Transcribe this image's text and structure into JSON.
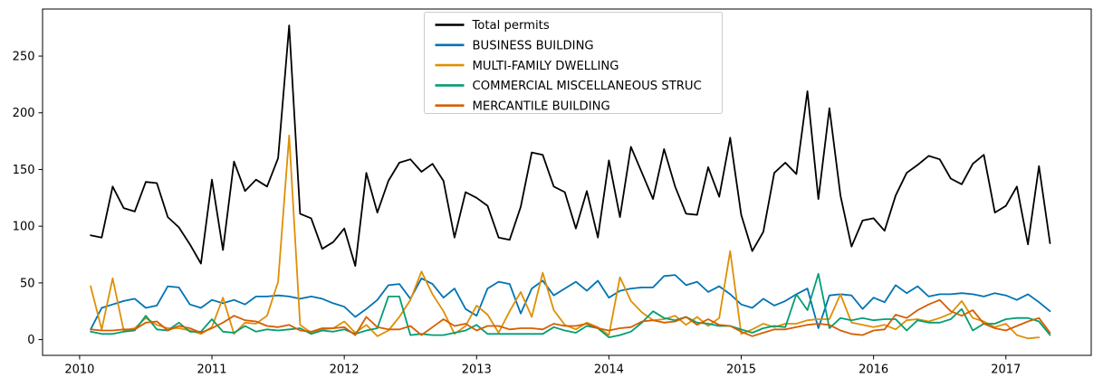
{
  "figure": {
    "background": "#ffffff",
    "border_color": "#000000"
  },
  "legend": {
    "border_color": "#cccccc",
    "items": [
      {
        "label": "Total permits",
        "color": "#000000"
      },
      {
        "label": "BUSINESS BUILDING",
        "color": "#0173b2"
      },
      {
        "label": "MULTI-FAMILY DWELLING",
        "color": "#de8f05"
      },
      {
        "label": "COMMERCIAL MISCELLANEOUS STRUC",
        "color": "#029e73"
      },
      {
        "label": "MERCANTILE BUILDING",
        "color": "#d55e00"
      }
    ]
  },
  "chart_data": {
    "type": "line",
    "title": "",
    "xlabel": "",
    "ylabel": "",
    "grid": false,
    "legend_position": "upper center",
    "x_start": "2010-01",
    "x_freq": "monthly",
    "n_points": 88,
    "xlim": [
      2009.72,
      2017.645
    ],
    "ylim": [
      -13.9,
      291.5
    ],
    "x_ticks": [
      2010,
      2011,
      2012,
      2013,
      2014,
      2015,
      2016,
      2017
    ],
    "y_ticks": [
      0,
      50,
      100,
      150,
      200,
      250
    ],
    "series": [
      {
        "name": "Total permits",
        "color": "#000000",
        "values": [
          92,
          90,
          135,
          116,
          113,
          139,
          138,
          108,
          99,
          84,
          67,
          141,
          79,
          157,
          131,
          141,
          135,
          160,
          277,
          111,
          107,
          80,
          86,
          98,
          65,
          147,
          112,
          140,
          156,
          159,
          148,
          155,
          140,
          90,
          130,
          125,
          118,
          90,
          88,
          117,
          165,
          163,
          135,
          130,
          98,
          131,
          90,
          158,
          108,
          170,
          147,
          124,
          168,
          135,
          111,
          110,
          152,
          126,
          178,
          110,
          78,
          95,
          147,
          156,
          146,
          219,
          124,
          204,
          127,
          82,
          105,
          107,
          96,
          127,
          147,
          154,
          162,
          159,
          142,
          137,
          155,
          163,
          112,
          118,
          135,
          84,
          153,
          85
        ]
      },
      {
        "name": "BUSINESS BUILDING",
        "color": "#0173b2",
        "values": [
          9,
          28,
          31,
          34,
          36,
          28,
          30,
          47,
          46,
          31,
          28,
          35,
          32,
          35,
          31,
          38,
          38,
          39,
          38,
          36,
          38,
          36,
          32,
          29,
          20,
          27,
          35,
          48,
          49,
          36,
          54,
          49,
          37,
          45,
          27,
          21,
          45,
          51,
          49,
          23,
          45,
          52,
          39,
          45,
          51,
          43,
          52,
          37,
          43,
          45,
          46,
          46,
          56,
          57,
          48,
          51,
          42,
          47,
          40,
          31,
          28,
          36,
          30,
          34,
          40,
          45,
          10,
          39,
          40,
          39,
          27,
          37,
          33,
          48,
          41,
          47,
          38,
          40,
          40,
          41,
          40,
          38,
          41,
          39,
          35,
          40,
          33,
          25
        ]
      },
      {
        "name": "MULTI-FAMILY DWELLING",
        "color": "#de8f05",
        "values": [
          47,
          9,
          54,
          8,
          10,
          19,
          13,
          10,
          10,
          8,
          5,
          11,
          37,
          5,
          15,
          14,
          21,
          51,
          180,
          13,
          6,
          9,
          10,
          16,
          6,
          13,
          3,
          8,
          20,
          35,
          60,
          40,
          25,
          5,
          12,
          30,
          22,
          6,
          25,
          42,
          20,
          59,
          26,
          13,
          9,
          15,
          11,
          4,
          55,
          34,
          24,
          17,
          18,
          21,
          13,
          20,
          12,
          19,
          78,
          5,
          9,
          14,
          11,
          14,
          14,
          17,
          18,
          18,
          40,
          15,
          13,
          11,
          13,
          9,
          17,
          18,
          16,
          19,
          23,
          34,
          19,
          16,
          11,
          14,
          4,
          1,
          2,
          null
        ]
      },
      {
        "name": "COMMERCIAL MISCELLANEOUS STRUC",
        "color": "#029e73",
        "values": [
          7,
          5,
          5,
          7,
          8,
          21,
          9,
          8,
          15,
          7,
          7,
          18,
          7,
          6,
          12,
          7,
          9,
          8,
          9,
          10,
          5,
          8,
          7,
          9,
          5,
          8,
          10,
          38,
          38,
          4,
          5,
          4,
          4,
          6,
          8,
          13,
          5,
          5,
          5,
          5,
          5,
          5,
          11,
          8,
          6,
          12,
          10,
          2,
          4,
          7,
          15,
          25,
          19,
          17,
          20,
          15,
          14,
          12,
          12,
          9,
          6,
          10,
          12,
          11,
          40,
          26,
          58,
          10,
          19,
          17,
          19,
          17,
          18,
          18,
          8,
          17,
          15,
          15,
          18,
          27,
          8,
          14,
          14,
          18,
          19,
          19,
          16,
          4
        ]
      },
      {
        "name": "MERCANTILE BUILDING",
        "color": "#d55e00",
        "values": [
          9,
          8,
          8,
          9,
          9,
          15,
          16,
          8,
          12,
          10,
          6,
          10,
          15,
          21,
          17,
          16,
          12,
          11,
          13,
          8,
          7,
          10,
          10,
          11,
          4,
          20,
          11,
          9,
          9,
          12,
          4,
          11,
          18,
          12,
          14,
          8,
          12,
          12,
          9,
          10,
          10,
          9,
          14,
          12,
          12,
          14,
          10,
          8,
          10,
          11,
          16,
          17,
          15,
          16,
          20,
          13,
          18,
          13,
          12,
          7,
          3,
          6,
          9,
          9,
          11,
          13,
          14,
          13,
          8,
          5,
          4,
          8,
          9,
          22,
          19,
          26,
          31,
          35,
          25,
          21,
          26,
          14,
          10,
          8,
          12,
          16,
          19,
          6
        ]
      }
    ]
  }
}
